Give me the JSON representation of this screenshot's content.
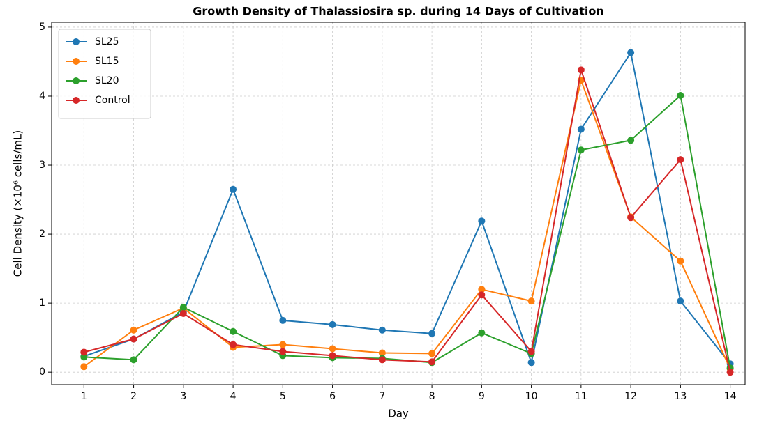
{
  "chart_data": {
    "type": "line",
    "title": "Growth Density of Thalassiosira sp. during 14 Days of Cultivation",
    "x_label": "Day",
    "y_label": "Cell Density (×10⁶ cells/mL)",
    "x": [
      1,
      2,
      3,
      4,
      5,
      6,
      7,
      8,
      9,
      10,
      11,
      12,
      13,
      14
    ],
    "series": [
      {
        "name": "SL25",
        "color": "#1f77b4",
        "values": [
          0.23,
          0.48,
          0.87,
          2.65,
          0.75,
          0.69,
          0.61,
          0.56,
          2.19,
          0.14,
          3.52,
          4.63,
          1.03,
          0.12
        ]
      },
      {
        "name": "SL15",
        "color": "#ff7f0e",
        "values": [
          0.08,
          0.61,
          0.93,
          0.36,
          0.4,
          0.34,
          0.28,
          0.27,
          1.2,
          1.03,
          4.23,
          2.25,
          1.61,
          0.05
        ]
      },
      {
        "name": "SL20",
        "color": "#2ca02c",
        "values": [
          0.22,
          0.18,
          0.94,
          0.59,
          0.24,
          0.21,
          0.2,
          0.14,
          0.57,
          0.27,
          3.22,
          3.36,
          4.01,
          0.06
        ]
      },
      {
        "name": "Control",
        "color": "#d62728",
        "values": [
          0.29,
          0.48,
          0.85,
          0.4,
          0.3,
          0.24,
          0.18,
          0.15,
          1.12,
          0.3,
          4.38,
          2.24,
          3.08,
          0.0
        ]
      }
    ],
    "xlim": [
      0.35,
      14.3
    ],
    "xticks": [
      1,
      2,
      3,
      4,
      5,
      6,
      7,
      8,
      9,
      10,
      11,
      12,
      13,
      14
    ],
    "ylim": [
      -0.18,
      5.07
    ],
    "yticks": [
      0,
      1,
      2,
      3,
      4,
      5
    ],
    "grid": true,
    "legend": "upper left"
  }
}
